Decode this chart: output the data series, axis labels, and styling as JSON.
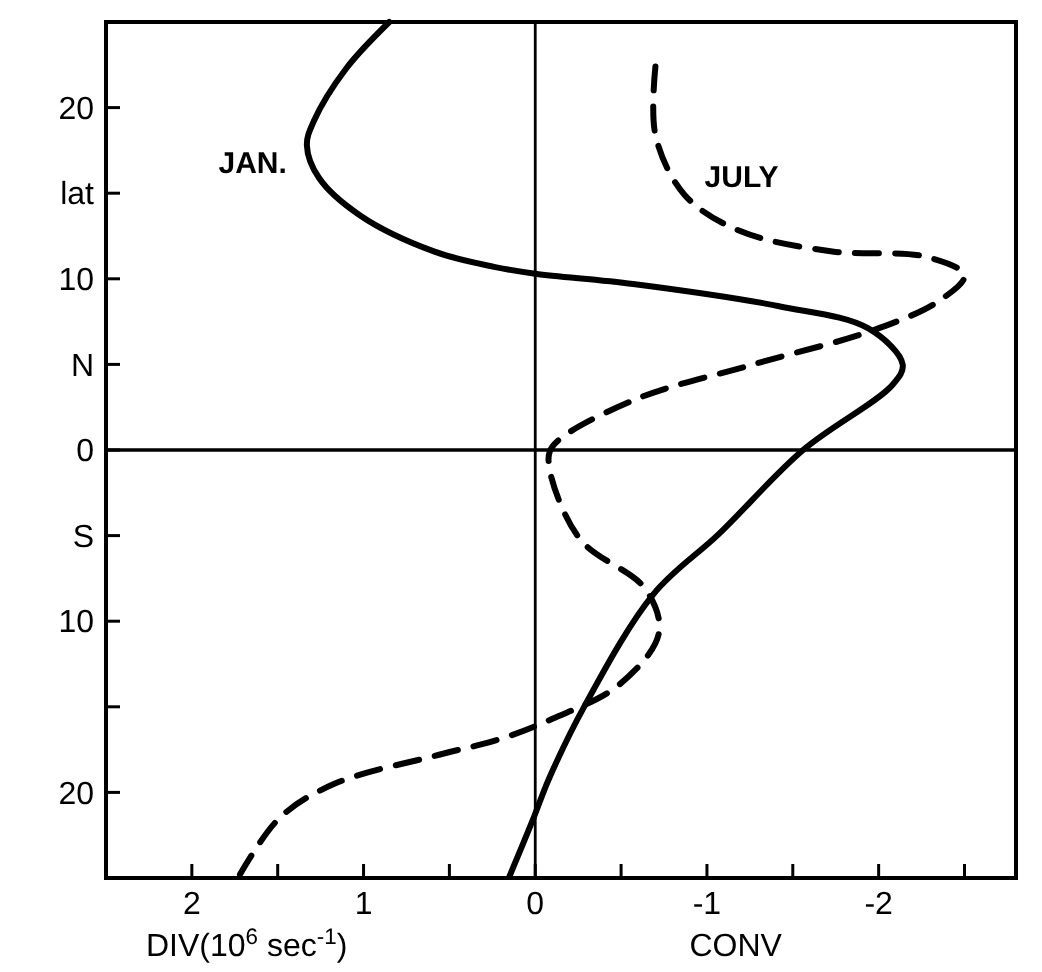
{
  "chart_data": {
    "type": "line",
    "xlabel": "DIV(10$^{6}$ sec$^{-1}$)",
    "annotations": [
      "CONV"
    ],
    "xlim": [
      2.5,
      -2.8
    ],
    "ylim": [
      -25,
      25
    ],
    "xticks": [
      {
        "value": 2.5,
        "label": null
      },
      2,
      {
        "value": 1.5,
        "label": null
      },
      1,
      {
        "value": 0.5,
        "label": null
      },
      0,
      {
        "value": -0.5,
        "label": null
      },
      -1,
      {
        "value": -1.5,
        "label": null
      },
      -2,
      {
        "value": -2.5,
        "label": null
      }
    ],
    "yticks": [
      {
        "value": -20,
        "label": "20"
      },
      {
        "value": -15,
        "label": null
      },
      {
        "value": -10,
        "label": "10"
      },
      {
        "value": -5,
        "label": "S"
      },
      0,
      {
        "value": 5,
        "label": "N"
      },
      10,
      {
        "value": 15,
        "label": "lat"
      },
      20
    ],
    "ref_lines": [
      {
        "axis": "x",
        "value": 0
      },
      {
        "axis": "y",
        "value": 0
      }
    ],
    "grid": false,
    "series": [
      {
        "name": "JAN.",
        "color": "#000000",
        "line_style": "solid",
        "x": [
          0.85,
          1.1,
          1.29,
          1.33,
          1.26,
          1.02,
          0.59,
          0.24,
          0,
          -0.57,
          -1.42,
          -1.94,
          -2.14,
          -2.08,
          -1.56,
          -1.07,
          -0.69,
          -0.29,
          -0.08,
          0.01,
          0.15
        ],
        "values": [
          25,
          22.3,
          19.2,
          17.8,
          15.9,
          13.7,
          11.6,
          10.7,
          10.3,
          9.7,
          8.4,
          7.1,
          5.0,
          3.8,
          0,
          -4.9,
          -8.4,
          -14.9,
          -19.2,
          -21.5,
          -24.9
        ]
      },
      {
        "name": "JULY",
        "color": "#000000",
        "line_style": "dashed",
        "x": [
          -0.7,
          -0.7,
          -0.87,
          -1.19,
          -1.73,
          -2.27,
          -2.5,
          -2.35,
          -1.97,
          -1.27,
          -0.57,
          -0.1,
          -0.08,
          -0.26,
          -0.64,
          -0.72,
          -0.49,
          -0.1,
          0.21,
          0.56,
          1.17,
          1.49,
          1.72
        ],
        "values": [
          22.4,
          18.4,
          14.9,
          12.8,
          11.6,
          11.3,
          10.2,
          8.7,
          7.0,
          5.0,
          2.9,
          0.2,
          -0.9,
          -5.2,
          -8.1,
          -10.7,
          -13.7,
          -15.7,
          -16.9,
          -17.8,
          -19.5,
          -21.5,
          -24.8
        ]
      }
    ]
  }
}
